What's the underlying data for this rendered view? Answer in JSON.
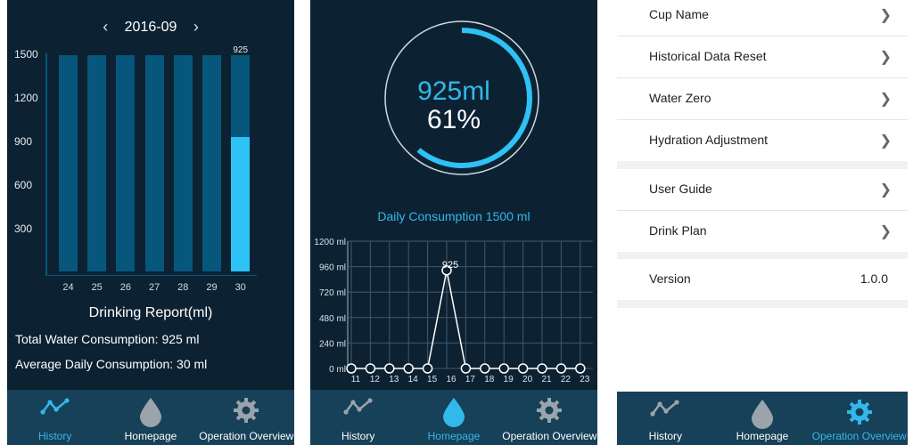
{
  "history_screen": {
    "month": "2016-09",
    "prev_icon": "chevron-left-icon",
    "next_icon": "chevron-right-icon",
    "y_ticks": [
      "1500",
      "1200",
      "900",
      "600",
      "300"
    ],
    "bar_value_label": "925",
    "title": "Drinking Report(ml)",
    "total_label": "Total Water Consumption: 925 ml",
    "average_label": "Average Daily Consumption: 30 ml"
  },
  "chart_data": [
    {
      "type": "bar",
      "categories": [
        "24",
        "25",
        "26",
        "27",
        "28",
        "29",
        "30"
      ],
      "values": [
        0,
        0,
        0,
        0,
        0,
        0,
        925
      ],
      "ylim": [
        0,
        1500
      ],
      "title": "Drinking Report(ml)",
      "xlabel": "",
      "ylabel": ""
    },
    {
      "type": "line",
      "x": [
        "11",
        "12",
        "13",
        "14",
        "15",
        "16",
        "17",
        "18",
        "19",
        "20",
        "21",
        "22",
        "23"
      ],
      "values": [
        0,
        0,
        0,
        0,
        0,
        925,
        0,
        0,
        0,
        0,
        0,
        0,
        0
      ],
      "y_ticks": [
        "1200 ml",
        "960 ml",
        "720 ml",
        "480 ml",
        "240 ml",
        "0 ml"
      ],
      "ylim": [
        0,
        1200
      ],
      "grid": true,
      "point_label": "925",
      "title": "",
      "xlabel": "",
      "ylabel": ""
    }
  ],
  "home_screen": {
    "volume": "925ml",
    "percent": "61%",
    "progress": 0.61,
    "daily_label": "Daily Consumption 1500 ml"
  },
  "settings_screen": {
    "items": [
      {
        "label": "Cup Name"
      },
      {
        "label": "Historical Data Reset"
      },
      {
        "label": "Water Zero"
      },
      {
        "label": "Hydration Adjustment"
      },
      {
        "label": "User Guide"
      },
      {
        "label": "Drink Plan"
      }
    ],
    "version_label": "Version",
    "version_value": "1.0.0"
  },
  "nav": {
    "history": "History",
    "homepage": "Homepage",
    "operation": "Operation Overview",
    "icons": [
      "history-icon",
      "drop-icon",
      "gear-icon"
    ]
  },
  "colors": {
    "background": "#0c2233",
    "nav": "#174059",
    "accent": "#33b8ea",
    "bar_track": "#07567c",
    "bar_fill": "#2ec2f5"
  }
}
